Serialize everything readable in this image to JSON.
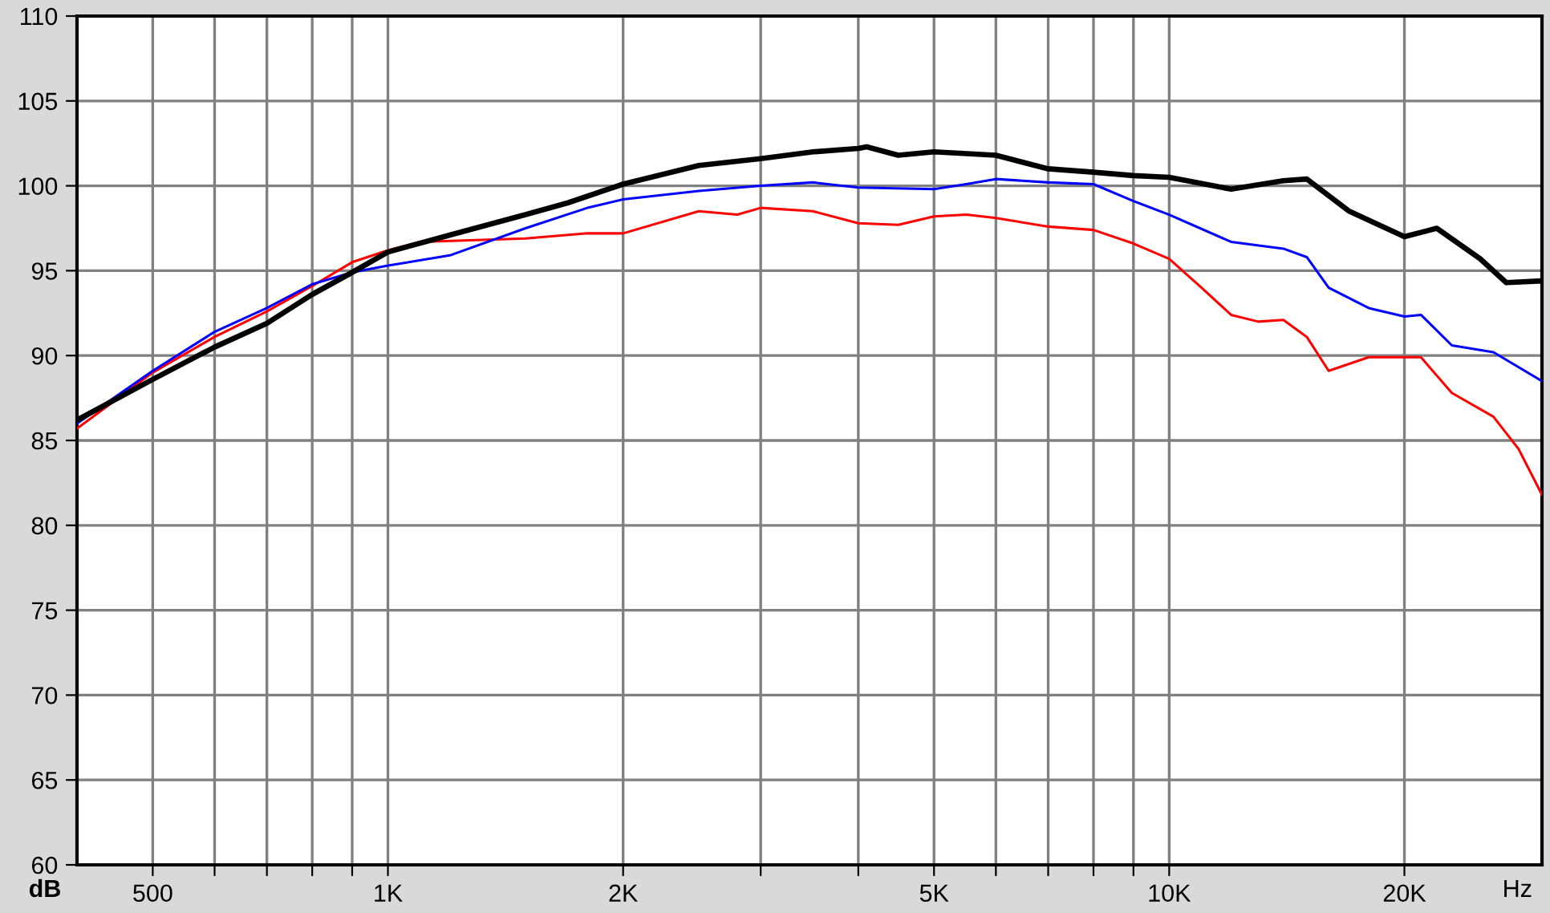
{
  "chart_data": {
    "type": "line",
    "xlabel": "Hz",
    "ylabel": "dB",
    "log": "x",
    "grid": true,
    "legend": false,
    "line_style": "solid",
    "marker": "none",
    "xlim": [
      400,
      30000
    ],
    "ylim": [
      60,
      110
    ],
    "xticks": [
      {
        "value": 500,
        "label": "500"
      },
      {
        "value": 600,
        "label": null
      },
      {
        "value": 700,
        "label": null
      },
      {
        "value": 800,
        "label": null
      },
      {
        "value": 900,
        "label": null
      },
      {
        "value": 1000,
        "label": "1K"
      },
      {
        "value": 2000,
        "label": "2K"
      },
      {
        "value": 3000,
        "label": null
      },
      {
        "value": 4000,
        "label": null
      },
      {
        "value": 5000,
        "label": "5K"
      },
      {
        "value": 6000,
        "label": null
      },
      {
        "value": 7000,
        "label": null
      },
      {
        "value": 8000,
        "label": null
      },
      {
        "value": 9000,
        "label": null
      },
      {
        "value": 10000,
        "label": "10K"
      },
      {
        "value": 20000,
        "label": "20K"
      }
    ],
    "yticks": [
      60,
      65,
      70,
      75,
      80,
      85,
      90,
      95,
      100,
      105,
      110
    ],
    "series": [
      {
        "color": "#000000",
        "x": [
          400,
          500,
          600,
          700,
          800,
          900,
          1000,
          1200,
          1500,
          1700,
          2000,
          2500,
          3000,
          3500,
          4000,
          4100,
          4500,
          5000,
          6000,
          7000,
          8000,
          9000,
          10000,
          12000,
          14000,
          15000,
          17000,
          20000,
          22000,
          25000,
          27000,
          30000
        ],
        "values": [
          86.2,
          88.6,
          90.5,
          91.9,
          93.6,
          94.9,
          96.1,
          97.1,
          98.3,
          99.0,
          100.1,
          101.2,
          101.6,
          102.0,
          102.2,
          102.3,
          101.8,
          102.0,
          101.8,
          101.0,
          100.8,
          100.6,
          100.5,
          99.8,
          100.3,
          100.4,
          98.5,
          97.0,
          97.5,
          95.7,
          94.3,
          94.4
        ]
      },
      {
        "color": "#0000ff",
        "x": [
          400,
          500,
          600,
          700,
          800,
          900,
          1000,
          1200,
          1500,
          1800,
          2000,
          2500,
          3000,
          3500,
          4000,
          5000,
          5500,
          6000,
          7000,
          8000,
          9000,
          10000,
          12000,
          14000,
          15000,
          16000,
          18000,
          20000,
          21000,
          23000,
          26000,
          30000
        ],
        "values": [
          86.0,
          89.1,
          91.4,
          92.8,
          94.2,
          94.9,
          95.3,
          95.9,
          97.5,
          98.7,
          99.2,
          99.7,
          100.0,
          100.2,
          99.9,
          99.8,
          100.1,
          100.4,
          100.2,
          100.1,
          99.1,
          98.3,
          96.7,
          96.3,
          95.8,
          94.0,
          92.8,
          92.3,
          92.4,
          90.6,
          90.2,
          88.5
        ]
      },
      {
        "color": "#ff0000",
        "x": [
          400,
          500,
          600,
          700,
          800,
          900,
          1000,
          1100,
          1500,
          1800,
          2000,
          2500,
          2800,
          3000,
          3500,
          4000,
          4500,
          5000,
          5500,
          6000,
          7000,
          8000,
          9000,
          10000,
          11000,
          12000,
          13000,
          14000,
          15000,
          16000,
          18000,
          20000,
          21000,
          23000,
          26000,
          28000,
          30000
        ],
        "values": [
          85.7,
          89.0,
          91.1,
          92.6,
          94.1,
          95.5,
          96.2,
          96.7,
          96.9,
          97.2,
          97.2,
          98.5,
          98.3,
          98.7,
          98.5,
          97.8,
          97.7,
          98.2,
          98.3,
          98.1,
          97.6,
          97.4,
          96.6,
          95.7,
          94.0,
          92.4,
          92.0,
          92.1,
          91.1,
          89.1,
          89.9,
          89.9,
          89.9,
          87.8,
          86.4,
          84.5,
          81.8
        ]
      }
    ]
  }
}
